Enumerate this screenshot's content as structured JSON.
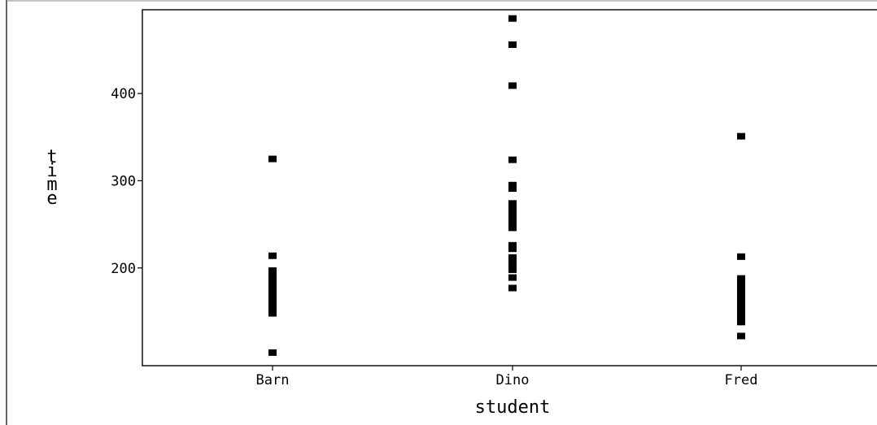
{
  "chart_data": {
    "type": "scatter",
    "xlabel": "student",
    "ylabel": "time",
    "categories": [
      "Barn",
      "Dino",
      "Fred"
    ],
    "y_ticks": [
      200,
      300,
      400
    ],
    "ylim": [
      88,
      496
    ],
    "grid": false,
    "legend": "none",
    "marker_color": "#000000",
    "series": [
      {
        "category": "Barn",
        "values": [
          325,
          214,
          197,
          193,
          188,
          183,
          178,
          173,
          168,
          163,
          158,
          153,
          148,
          103
        ]
      },
      {
        "category": "Dino",
        "values": [
          486,
          456,
          409,
          324,
          295,
          291,
          274,
          269,
          265,
          260,
          256,
          251,
          246,
          226,
          222,
          212,
          207,
          202,
          198,
          189,
          177
        ]
      },
      {
        "category": "Fred",
        "values": [
          351,
          213,
          188,
          184,
          179,
          175,
          170,
          166,
          161,
          157,
          152,
          148,
          143,
          138,
          122
        ]
      }
    ]
  }
}
